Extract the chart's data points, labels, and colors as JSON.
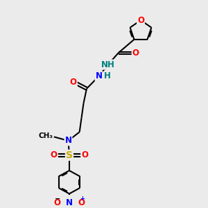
{
  "bg_color": "#ebebeb",
  "bond_color": "#000000",
  "bond_width": 1.5,
  "atom_colors": {
    "O": "#ff0000",
    "N": "#0000ff",
    "S": "#ccaa00",
    "H": "#008080",
    "C": "#000000"
  },
  "font_size": 8.5,
  "figsize": [
    3.0,
    3.0
  ],
  "dpi": 100
}
